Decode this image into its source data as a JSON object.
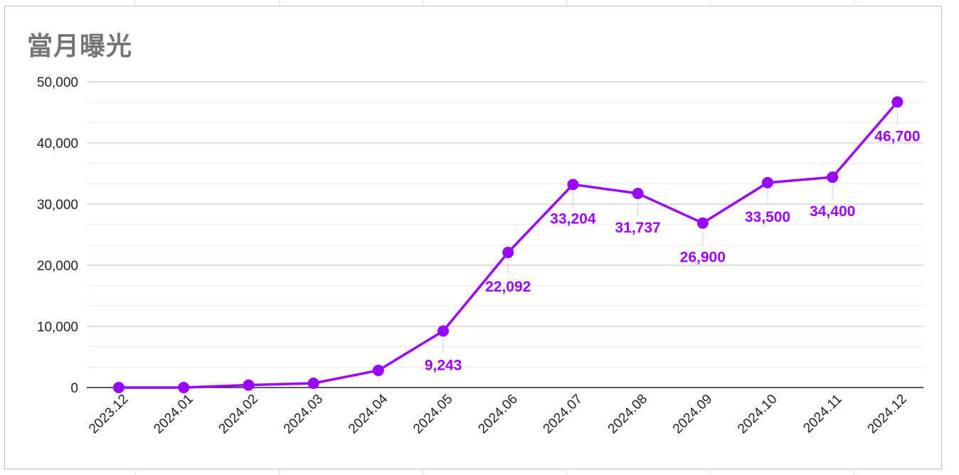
{
  "chart_data": {
    "type": "line",
    "title": "當月曝光",
    "xlabel": "",
    "ylabel": "",
    "categories": [
      "2023.12",
      "2024.01",
      "2024.02",
      "2024.03",
      "2024.04",
      "2024.05",
      "2024.06",
      "2024.07",
      "2024.08",
      "2024.09",
      "2024.10",
      "2024.11",
      "2024.12"
    ],
    "series": [
      {
        "values": [
          0,
          0,
          400,
          700,
          2800,
          9243,
          22092,
          33204,
          31737,
          26900,
          33500,
          34400,
          46700
        ]
      }
    ],
    "data_labels": [
      "",
      "",
      "",
      "",
      "",
      "9,243",
      "22,092",
      "33,204",
      "31,737",
      "26,900",
      "33,500",
      "34,400",
      "46,700"
    ],
    "yticks": [
      "0",
      "10,000",
      "20,000",
      "30,000",
      "40,000",
      "50,000"
    ],
    "ylim": [
      0,
      50000
    ],
    "grid": true,
    "legend": "none",
    "line_color": "#9900ff",
    "axis_color": "#222222",
    "title_color": "#757575"
  }
}
